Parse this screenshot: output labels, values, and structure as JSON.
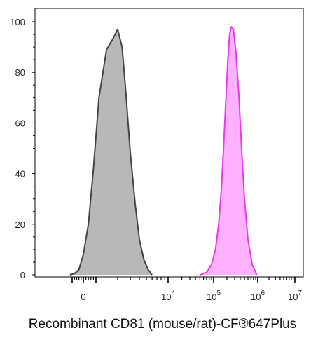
{
  "chart_data": {
    "type": "area",
    "xlabel": "Recombinant CD81 (mouse/rat)-CF®647Plus",
    "x_scale": "biexponential",
    "ylim": [
      0,
      100
    ],
    "y_ticks": [
      "0",
      "20",
      "40",
      "60",
      "80",
      "100"
    ],
    "x_ticks": [
      {
        "base": "0",
        "exp": ""
      },
      {
        "base": "10",
        "exp": "4"
      },
      {
        "base": "10",
        "exp": "5"
      },
      {
        "base": "10",
        "exp": "6"
      },
      {
        "base": "10",
        "exp": "7"
      }
    ],
    "series": [
      {
        "color": "#444444",
        "fill": "#b8b8b8",
        "x": [
          -1200,
          -800,
          -400,
          0,
          400,
          800,
          1100,
          1400,
          1700,
          2000,
          2300,
          2600,
          3000,
          3500,
          4000,
          4600,
          5300,
          6000
        ],
        "values": [
          0,
          0.5,
          2,
          8,
          20,
          42,
          70,
          89,
          93,
          97,
          90,
          72,
          48,
          28,
          14,
          6,
          2,
          0
        ]
      },
      {
        "color": "#e83be8",
        "fill": "#ffb0ff",
        "x": [
          50000,
          70000,
          90000,
          110000,
          130000,
          150000,
          170000,
          190000,
          210000,
          230000,
          250000,
          280000,
          320000,
          370000,
          430000,
          500000,
          600000,
          750000,
          950000
        ],
        "values": [
          0,
          1,
          4,
          10,
          20,
          34,
          52,
          70,
          85,
          95,
          98,
          97,
          88,
          72,
          50,
          30,
          14,
          4,
          0
        ]
      }
    ]
  }
}
